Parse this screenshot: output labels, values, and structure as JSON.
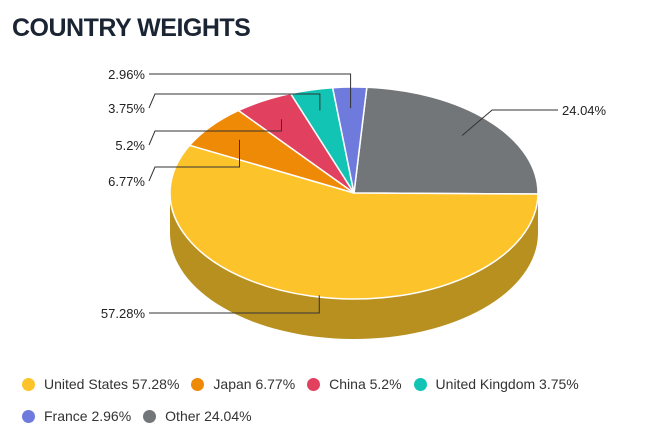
{
  "title": "COUNTRY WEIGHTS",
  "chart_data": {
    "type": "pie",
    "title": "COUNTRY WEIGHTS",
    "slices": [
      {
        "name": "United States",
        "value": 57.28,
        "label": "57.28%",
        "legend": "United States 57.28%",
        "color": "#fdc32a",
        "side_color": "#b89020"
      },
      {
        "name": "Japan",
        "value": 6.77,
        "label": "6.77%",
        "legend": "Japan 6.77%",
        "color": "#ef8a06",
        "side_color": "#a86004"
      },
      {
        "name": "China",
        "value": 5.2,
        "label": "5.2%",
        "legend": "China 5.2%",
        "color": "#e2405f",
        "side_color": "#9c2c42"
      },
      {
        "name": "United Kingdom",
        "value": 3.75,
        "label": "3.75%",
        "legend": "United Kingdom 3.75%",
        "color": "#12c4b4",
        "side_color": "#0c887d"
      },
      {
        "name": "France",
        "value": 2.96,
        "label": "2.96%",
        "legend": "France 2.96%",
        "color": "#6f7bdc",
        "side_color": "#4d5699"
      },
      {
        "name": "Other",
        "value": 24.04,
        "label": "24.04%",
        "legend": "Other 24.04%",
        "color": "#737679",
        "side_color": "#505254"
      }
    ],
    "legend_position": "bottom",
    "three_d": true
  }
}
